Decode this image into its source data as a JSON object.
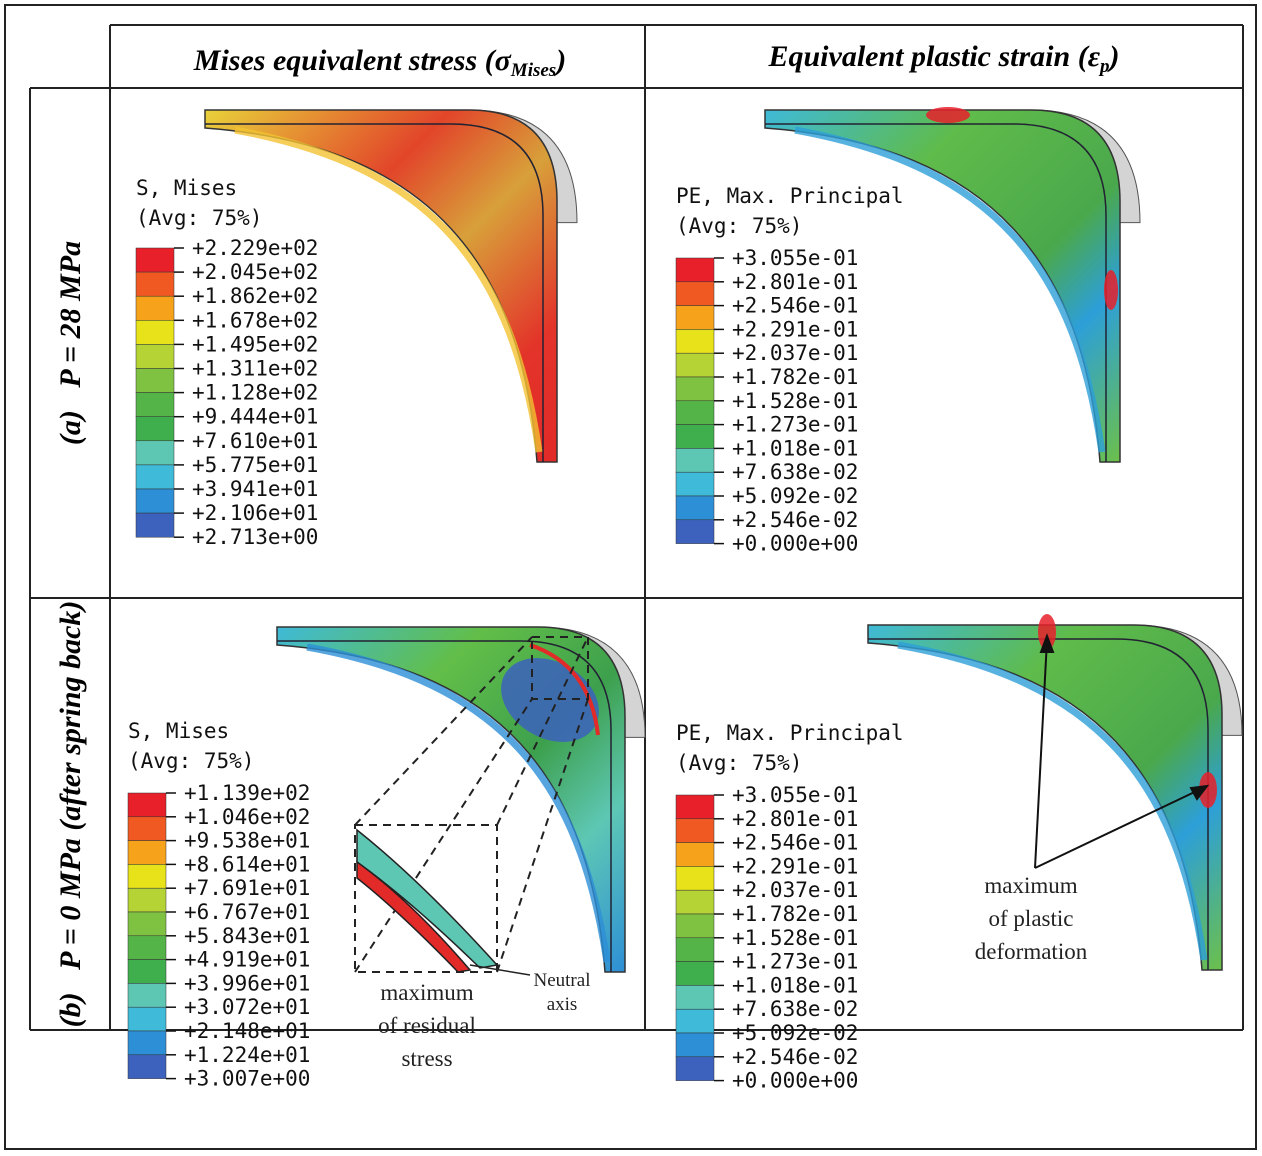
{
  "header": {
    "columns": [
      {
        "text": "Mises equivalent stress (σ",
        "sub": "Mises",
        "end": ")"
      },
      {
        "text": "Equivalent plastic strain (ε",
        "sub": "p",
        "end": ")"
      }
    ]
  },
  "rows": [
    {
      "label": "(a)   P = 28 MPa",
      "panels": [
        {
          "legend": {
            "title": "S, Mises",
            "subtitle": "(Avg: 75%)",
            "labels": [
              "+2.229e+02",
              "+2.045e+02",
              "+1.862e+02",
              "+1.678e+02",
              "+1.495e+02",
              "+1.311e+02",
              "+1.128e+02",
              "+9.444e+01",
              "+7.610e+01",
              "+5.775e+01",
              "+3.941e+01",
              "+2.106e+01",
              "+2.713e+00"
            ]
          }
        },
        {
          "legend": {
            "title": "PE, Max. Principal",
            "subtitle": "(Avg: 75%)",
            "labels": [
              "+3.055e-01",
              "+2.801e-01",
              "+2.546e-01",
              "+2.291e-01",
              "+2.037e-01",
              "+1.782e-01",
              "+1.528e-01",
              "+1.273e-01",
              "+1.018e-01",
              "+7.638e-02",
              "+5.092e-02",
              "+2.546e-02",
              "+0.000e+00"
            ]
          }
        }
      ]
    },
    {
      "label": "(b)   P = 0 MPa (after spring back)",
      "panels": [
        {
          "legend": {
            "title": "S, Mises",
            "subtitle": "(Avg: 75%)",
            "labels": [
              "+1.139e+02",
              "+1.046e+02",
              "+9.538e+01",
              "+8.614e+01",
              "+7.691e+01",
              "+6.767e+01",
              "+5.843e+01",
              "+4.919e+01",
              "+3.996e+01",
              "+3.072e+01",
              "+2.148e+01",
              "+1.224e+01",
              "+3.007e+00"
            ]
          },
          "annotations": [
            {
              "lines": [
                "maximum",
                "of residual",
                "stress"
              ]
            },
            {
              "lines": [
                "Neutral",
                "axis"
              ]
            }
          ]
        },
        {
          "legend": {
            "title": "PE, Max. Principal",
            "subtitle": "(Avg: 75%)",
            "labels": [
              "+3.055e-01",
              "+2.801e-01",
              "+2.546e-01",
              "+2.291e-01",
              "+2.037e-01",
              "+1.782e-01",
              "+1.528e-01",
              "+1.273e-01",
              "+1.018e-01",
              "+7.638e-02",
              "+5.092e-02",
              "+2.546e-02",
              "+0.000e+00"
            ]
          },
          "annotations": [
            {
              "lines": [
                "maximum",
                "of plastic",
                "deformation"
              ]
            }
          ]
        }
      ]
    }
  ]
}
